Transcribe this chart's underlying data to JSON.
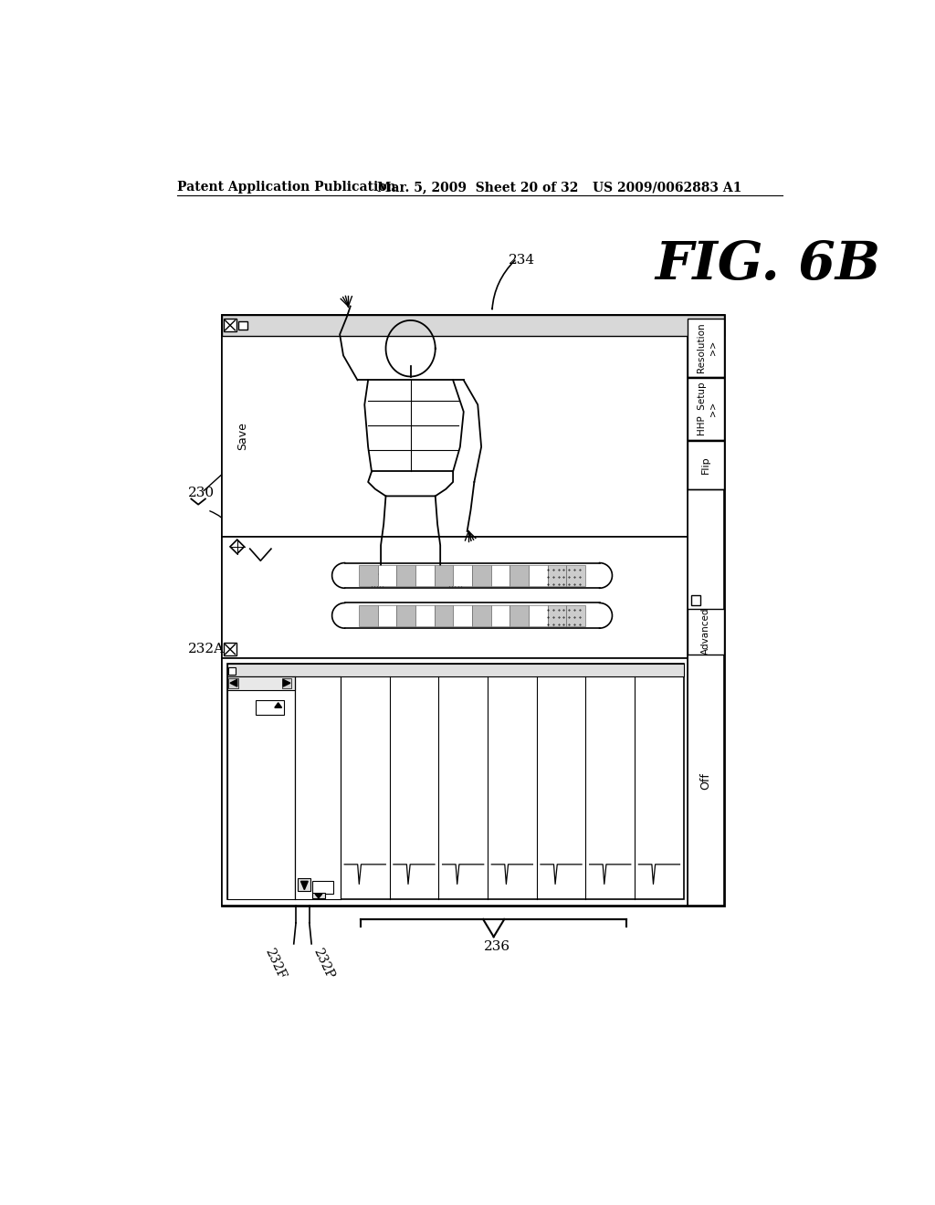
{
  "bg_color": "#ffffff",
  "header_text_left": "Patent Application Publication",
  "header_text_mid": "Mar. 5, 2009  Sheet 20 of 32",
  "header_text_right": "US 2009/0062883 A1",
  "fig_label": "FIG. 6B",
  "ref_234": "234",
  "ref_230": "230",
  "ref_232A": "232A",
  "ref_232F": "232F",
  "ref_232P": "232P",
  "ref_236": "236",
  "line_color": "#000000",
  "bg_color2": "#ffffff"
}
